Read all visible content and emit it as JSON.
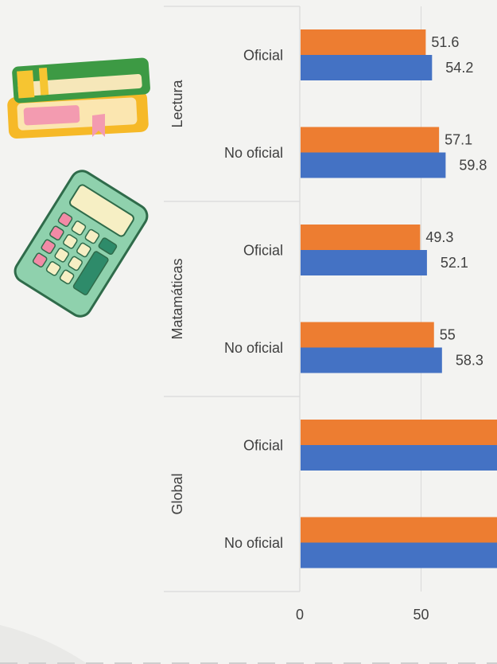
{
  "chart_data": {
    "type": "bar",
    "orientation": "horizontal",
    "groups": [
      {
        "name": "Lectura",
        "categories": [
          "Oficial",
          "No oficial"
        ]
      },
      {
        "name": "Matamáticas",
        "categories": [
          "Oficial",
          "No oficial"
        ]
      },
      {
        "name": "Global",
        "categories": [
          "Oficial",
          "No oficial"
        ]
      }
    ],
    "series": [
      {
        "color": "#ed7d31",
        "values": [
          51.6,
          57.1,
          49.3,
          55,
          90,
          90
        ],
        "labels": [
          "51.6",
          "57.1",
          "49.3",
          "55",
          "",
          ""
        ]
      },
      {
        "color": "#4472c4",
        "values": [
          54.2,
          59.8,
          52.1,
          58.3,
          90,
          90
        ],
        "labels": [
          "54.2",
          "59.8",
          "52.1",
          "58.3",
          "",
          ""
        ]
      }
    ],
    "xticks": [
      "0",
      "50"
    ],
    "xlim": [
      0,
      100
    ],
    "grid": true,
    "legend": "none"
  },
  "icons": [
    "books-icon",
    "calculator-icon"
  ]
}
